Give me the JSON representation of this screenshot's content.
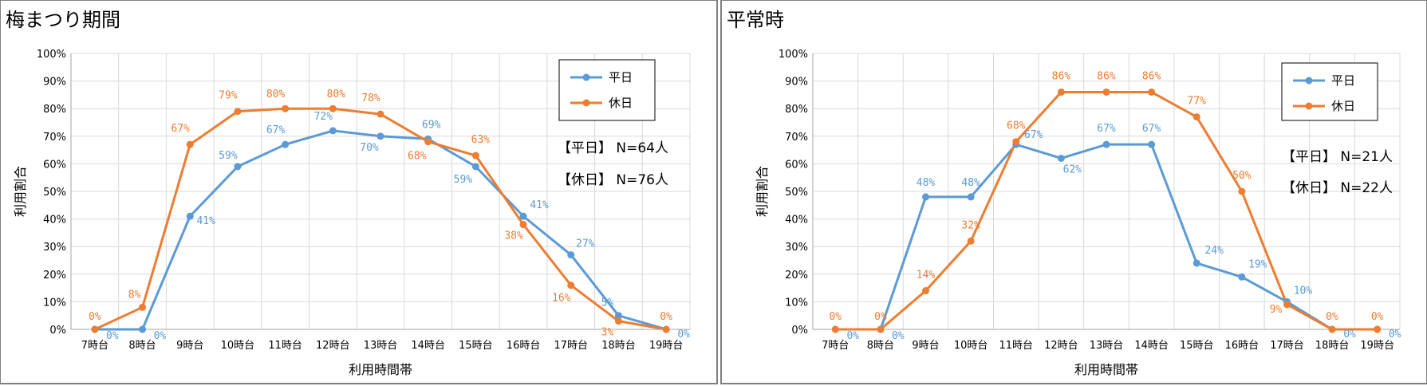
{
  "chart_data": [
    {
      "type": "line",
      "title": "梅まつり期間",
      "xlabel": "利用時間帯",
      "ylabel": "利用割合",
      "ylim": [
        0,
        100
      ],
      "yticks": [
        "0%",
        "10%",
        "20%",
        "30%",
        "40%",
        "50%",
        "60%",
        "70%",
        "80%",
        "90%",
        "100%"
      ],
      "categories": [
        "7時台",
        "8時台",
        "9時台",
        "10時台",
        "11時台",
        "12時台",
        "13時台",
        "14時台",
        "15時台",
        "16時台",
        "17時台",
        "18時台",
        "19時台"
      ],
      "series": [
        {
          "name": "平日",
          "color": "#5b9bd5",
          "values": [
            0,
            0,
            41,
            59,
            67,
            72,
            70,
            69,
            59,
            41,
            27,
            5,
            0
          ],
          "labels": [
            "0%",
            "0%",
            "41%",
            "59%",
            "67%",
            "72%",
            "70%",
            "69%",
            "59%",
            "41%",
            "27%",
            "5%",
            "0%"
          ]
        },
        {
          "name": "休日",
          "color": "#ed7d31",
          "values": [
            0,
            8,
            67,
            79,
            80,
            80,
            78,
            68,
            63,
            38,
            16,
            3,
            0
          ],
          "labels": [
            "0%",
            "8%",
            "67%",
            "79%",
            "80%",
            "80%",
            "78%",
            "68%",
            "63%",
            "38%",
            "16%",
            "3%",
            "0%"
          ]
        }
      ],
      "notes": [
        "【平日】 N=64人",
        "【休日】 N=76人"
      ],
      "grid": true,
      "legend": "top-right"
    },
    {
      "type": "line",
      "title": "平常時",
      "xlabel": "利用時間帯",
      "ylabel": "利用割合",
      "ylim": [
        0,
        100
      ],
      "yticks": [
        "0%",
        "10%",
        "20%",
        "30%",
        "40%",
        "50%",
        "60%",
        "70%",
        "80%",
        "90%",
        "100%"
      ],
      "categories": [
        "7時台",
        "8時台",
        "9時台",
        "10時台",
        "11時台",
        "12時台",
        "13時台",
        "14時台",
        "15時台",
        "16時台",
        "17時台",
        "18時台",
        "19時台"
      ],
      "series": [
        {
          "name": "平日",
          "color": "#5b9bd5",
          "values": [
            0,
            0,
            48,
            48,
            67,
            62,
            67,
            67,
            24,
            19,
            10,
            0,
            0
          ],
          "labels": [
            "0%",
            "0%",
            "48%",
            "48%",
            "67%",
            "62%",
            "67%",
            "67%",
            "24%",
            "19%",
            "10%",
            "0%",
            "0%"
          ]
        },
        {
          "name": "休日",
          "color": "#ed7d31",
          "values": [
            0,
            0,
            14,
            32,
            68,
            86,
            86,
            86,
            77,
            50,
            9,
            0,
            0
          ],
          "labels": [
            "0%",
            "0%",
            "14%",
            "32%",
            "68%",
            "86%",
            "86%",
            "86%",
            "77%",
            "50%",
            "9%",
            "0%",
            "0%"
          ]
        }
      ],
      "notes": [
        "【平日】 N=21人",
        "【休日】 N=22人"
      ],
      "grid": true,
      "legend": "top-right"
    }
  ]
}
